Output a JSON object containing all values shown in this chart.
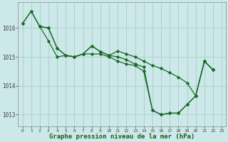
{
  "background_color": "#cce8e8",
  "grid_color": "#aacccc",
  "line_color": "#1a6b2a",
  "xlabel": "Graphe pression niveau de la mer (hPa)",
  "xlabel_fontsize": 6.5,
  "ylabel_ticks": [
    1013,
    1014,
    1015,
    1016
  ],
  "xlim": [
    -0.5,
    23.5
  ],
  "ylim": [
    1012.6,
    1016.9
  ],
  "series": [
    [
      1016.15,
      1016.58,
      1016.05,
      1016.0,
      1015.3,
      1015.05,
      1015.0,
      1015.1,
      1015.38,
      1015.18,
      1015.05,
      1015.0,
      1014.9,
      1014.75,
      1014.65,
      1013.15,
      1013.0,
      1013.05,
      1013.05,
      1013.35,
      1013.65,
      1014.85,
      1014.55,
      null
    ],
    [
      1016.15,
      1016.58,
      1016.05,
      1015.55,
      1015.0,
      1015.05,
      1015.0,
      1015.1,
      1015.1,
      1015.1,
      1015.0,
      1014.85,
      1014.75,
      1014.7,
      1014.5,
      1013.15,
      1013.0,
      1013.05,
      1013.05,
      1013.35,
      1013.65,
      1014.85,
      1014.55,
      null
    ],
    [
      null,
      null,
      1016.05,
      1016.0,
      1015.3,
      1015.05,
      1015.0,
      1015.1,
      1015.38,
      1015.18,
      1015.05,
      1015.2,
      1015.1,
      1015.0,
      1014.85,
      1014.7,
      1014.6,
      1014.45,
      1014.3,
      1014.1,
      1013.65,
      1014.85,
      1014.55,
      null
    ]
  ],
  "xtick_labels": [
    "0",
    "1",
    "2",
    "3",
    "4",
    "5",
    "6",
    "7",
    "8",
    "9",
    "10",
    "11",
    "12",
    "13",
    "14",
    "15",
    "16",
    "17",
    "18",
    "19",
    "20",
    "21",
    "22",
    "23"
  ],
  "figsize": [
    3.2,
    2.0
  ],
  "dpi": 100
}
